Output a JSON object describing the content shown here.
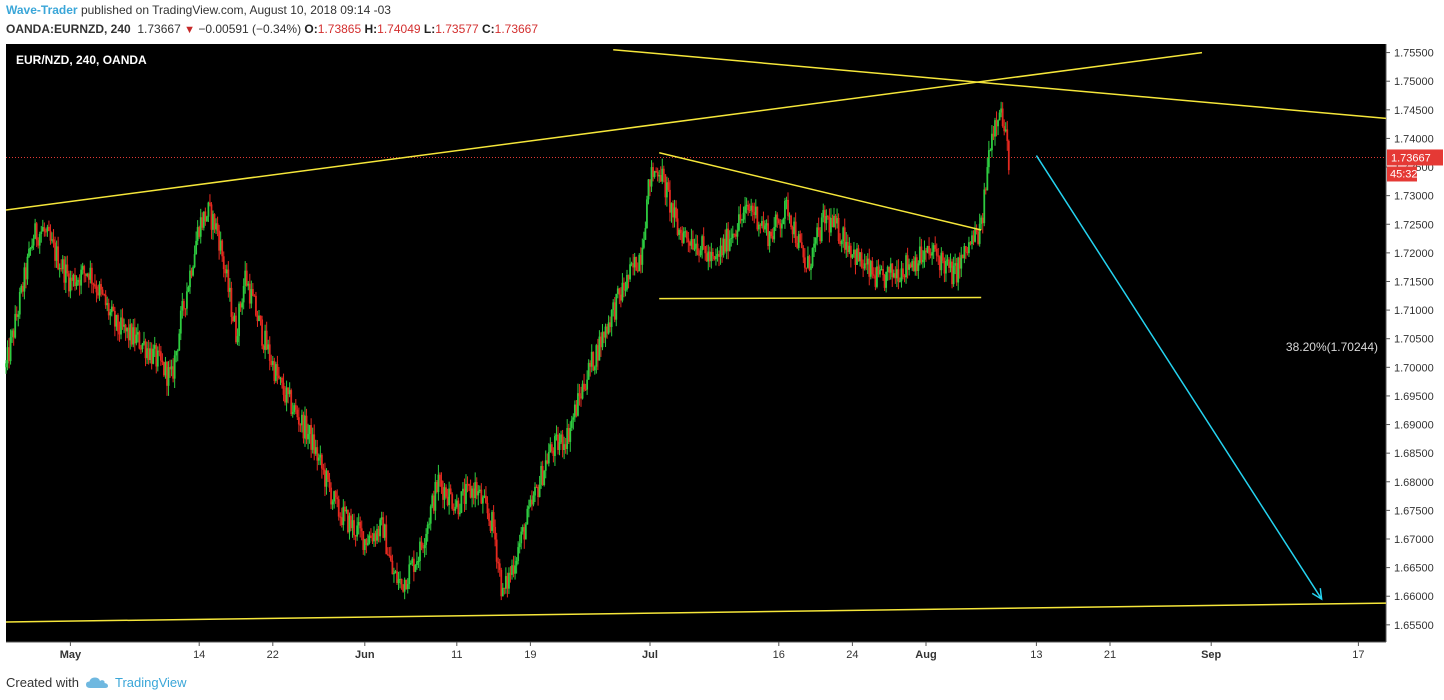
{
  "header": {
    "author": "Wave-Trader",
    "published_text": "published on TradingView.com, August 10, 2018 09:14 -03",
    "symbol": "OANDA:EURNZD, 240",
    "last": "1.73667",
    "change": "−0.00591 (−0.34%)",
    "o_label": "O:",
    "o_value": "1.73865",
    "h_label": "H:",
    "h_value": "1.74049",
    "l_label": "L:",
    "l_value": "1.73577",
    "c_label": "C:",
    "c_value": "1.73667"
  },
  "chart_title": "EUR/NZD, 240, OANDA",
  "fib_label": "38.20%(1.70244)",
  "footer": {
    "created_with": "Created with",
    "brand": "TradingView"
  },
  "colors": {
    "background": "#000000",
    "up_candle": "#2ecc40",
    "down_candle": "#e5291f",
    "trendline": "#f5e63a",
    "projection_arrow": "#25d3f0",
    "price_line": "#e53935",
    "price_tag_bg": "#e53935"
  },
  "chart_data": {
    "type": "candlestick",
    "title": "EUR/NZD, 240, OANDA",
    "ylim": [
      1.652,
      1.7565
    ],
    "y_ticks": [
      "1.75500",
      "1.75000",
      "1.74500",
      "1.74000",
      "1.73500",
      "1.73000",
      "1.72500",
      "1.72000",
      "1.71500",
      "1.71000",
      "1.70500",
      "1.70000",
      "1.69500",
      "1.69000",
      "1.68500",
      "1.68000",
      "1.67500",
      "1.67000",
      "1.66500",
      "1.66000",
      "1.65500"
    ],
    "x_ticks": [
      "May",
      "14",
      "22",
      "Jun",
      "11",
      "19",
      "Jul",
      "16",
      "24",
      "Aug",
      "13",
      "21",
      "Sep",
      "17"
    ],
    "last_price": "1.73667",
    "countdown": "45:32",
    "path": [
      {
        "date": "2018-04-23",
        "price": 1.7
      },
      {
        "date": "2018-04-26",
        "price": 1.723
      },
      {
        "date": "2018-04-27",
        "price": 1.724
      },
      {
        "date": "2018-04-30",
        "price": 1.715
      },
      {
        "date": "2018-05-02",
        "price": 1.717
      },
      {
        "date": "2018-05-05",
        "price": 1.707
      },
      {
        "date": "2018-05-08",
        "price": 1.704
      },
      {
        "date": "2018-05-11",
        "price": 1.698
      },
      {
        "date": "2018-05-12",
        "price": 1.708
      },
      {
        "date": "2018-05-14",
        "price": 1.725
      },
      {
        "date": "2018-05-15",
        "price": 1.727
      },
      {
        "date": "2018-05-16",
        "price": 1.724
      },
      {
        "date": "2018-05-18",
        "price": 1.706
      },
      {
        "date": "2018-05-19",
        "price": 1.716
      },
      {
        "date": "2018-05-21",
        "price": 1.705
      },
      {
        "date": "2018-05-23",
        "price": 1.696
      },
      {
        "date": "2018-05-26",
        "price": 1.688
      },
      {
        "date": "2018-05-29",
        "price": 1.675
      },
      {
        "date": "2018-06-01",
        "price": 1.67
      },
      {
        "date": "2018-06-03",
        "price": 1.672
      },
      {
        "date": "2018-06-04",
        "price": 1.664
      },
      {
        "date": "2018-06-05",
        "price": 1.662
      },
      {
        "date": "2018-06-07",
        "price": 1.668
      },
      {
        "date": "2018-06-09",
        "price": 1.68
      },
      {
        "date": "2018-06-11",
        "price": 1.676
      },
      {
        "date": "2018-06-13",
        "price": 1.679
      },
      {
        "date": "2018-06-15",
        "price": 1.672
      },
      {
        "date": "2018-06-16",
        "price": 1.66
      },
      {
        "date": "2018-06-17",
        "price": 1.665
      },
      {
        "date": "2018-06-19",
        "price": 1.675
      },
      {
        "date": "2018-06-21",
        "price": 1.685
      },
      {
        "date": "2018-06-23",
        "price": 1.688
      },
      {
        "date": "2018-06-25",
        "price": 1.698
      },
      {
        "date": "2018-06-28",
        "price": 1.71
      },
      {
        "date": "2018-07-01",
        "price": 1.72
      },
      {
        "date": "2018-07-02",
        "price": 1.733
      },
      {
        "date": "2018-07-03",
        "price": 1.735
      },
      {
        "date": "2018-07-05",
        "price": 1.724
      },
      {
        "date": "2018-07-07",
        "price": 1.722
      },
      {
        "date": "2018-07-09",
        "price": 1.718
      },
      {
        "date": "2018-07-11",
        "price": 1.724
      },
      {
        "date": "2018-07-13",
        "price": 1.728
      },
      {
        "date": "2018-07-15",
        "price": 1.723
      },
      {
        "date": "2018-07-17",
        "price": 1.728
      },
      {
        "date": "2018-07-19",
        "price": 1.717
      },
      {
        "date": "2018-07-21",
        "price": 1.726
      },
      {
        "date": "2018-07-23",
        "price": 1.723
      },
      {
        "date": "2018-07-25",
        "price": 1.718
      },
      {
        "date": "2018-07-27",
        "price": 1.715
      },
      {
        "date": "2018-07-29",
        "price": 1.717
      },
      {
        "date": "2018-07-31",
        "price": 1.719
      },
      {
        "date": "2018-08-02",
        "price": 1.72
      },
      {
        "date": "2018-08-04",
        "price": 1.716
      },
      {
        "date": "2018-08-06",
        "price": 1.722
      },
      {
        "date": "2018-08-07",
        "price": 1.724
      },
      {
        "date": "2018-08-08",
        "price": 1.74
      },
      {
        "date": "2018-08-09",
        "price": 1.746
      },
      {
        "date": "2018-08-10",
        "price": 1.7367
      }
    ],
    "annotations": {
      "fib_level": {
        "label": "38.20%(1.70244)",
        "price": 1.70244
      },
      "trendlines": [
        {
          "from": {
            "date": "2018-04-23",
            "price": 1.7275
          },
          "to": {
            "date": "2018-08-31",
            "price": 1.755
          }
        },
        {
          "from": {
            "date": "2018-06-28",
            "price": 1.7555
          },
          "to": {
            "date": "2018-09-20",
            "price": 1.7435
          }
        },
        {
          "from": {
            "date": "2018-07-03",
            "price": 1.7375
          },
          "to": {
            "date": "2018-08-07",
            "price": 1.724
          }
        },
        {
          "from": {
            "date": "2018-07-03",
            "price": 1.712
          },
          "to": {
            "date": "2018-08-07",
            "price": 1.7122
          }
        },
        {
          "from": {
            "date": "2018-04-23",
            "price": 1.6555
          },
          "to": {
            "date": "2018-09-20",
            "price": 1.6588
          }
        }
      ],
      "projection_arrow": {
        "from": {
          "date": "2018-08-13",
          "price": 1.737
        },
        "to": {
          "date": "2018-09-13",
          "price": 1.6595
        }
      }
    }
  }
}
